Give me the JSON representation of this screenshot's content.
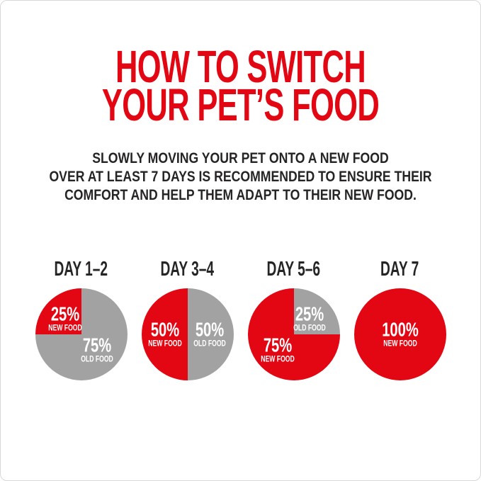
{
  "header": {
    "title_lines": [
      "HOW TO SWITCH",
      "YOUR PET’S FOOD"
    ],
    "subtitle_lines": [
      "SLOWLY MOVING YOUR PET ONTO A NEW FOOD",
      "OVER AT LEAST 7 DAYS IS RECOMMENDED TO ENSURE THEIR",
      "COMFORT AND HELP THEM ADAPT TO THEIR NEW FOOD."
    ]
  },
  "colors": {
    "brand_red": "#E30613",
    "old_food_gray": "#A3A2A2",
    "text_dark": "#272425",
    "label_white": "#FFFFFF",
    "border_gray": "#D8D8D8"
  },
  "chart_data": [
    {
      "type": "pie",
      "title": "DAY 1–2",
      "slices": [
        {
          "label": "NEW FOOD",
          "value": 25,
          "color": "#E30613",
          "start_deg": 270,
          "end_deg": 360
        },
        {
          "label": "OLD FOOD",
          "value": 75,
          "color": "#A3A2A2",
          "start_deg": 0,
          "end_deg": 270
        }
      ]
    },
    {
      "type": "pie",
      "title": "DAY 3–4",
      "slices": [
        {
          "label": "NEW FOOD",
          "value": 50,
          "color": "#E30613",
          "start_deg": 180,
          "end_deg": 360
        },
        {
          "label": "OLD FOOD",
          "value": 50,
          "color": "#A3A2A2",
          "start_deg": 0,
          "end_deg": 180
        }
      ]
    },
    {
      "type": "pie",
      "title": "DAY 5–6",
      "slices": [
        {
          "label": "NEW FOOD",
          "value": 75,
          "color": "#E30613",
          "start_deg": 90,
          "end_deg": 360
        },
        {
          "label": "OLD FOOD",
          "value": 25,
          "color": "#A3A2A2",
          "start_deg": 0,
          "end_deg": 90
        }
      ]
    },
    {
      "type": "pie",
      "title": "DAY 7",
      "slices": [
        {
          "label": "NEW FOOD",
          "value": 100,
          "color": "#E30613",
          "start_deg": 0,
          "end_deg": 360
        }
      ]
    }
  ]
}
